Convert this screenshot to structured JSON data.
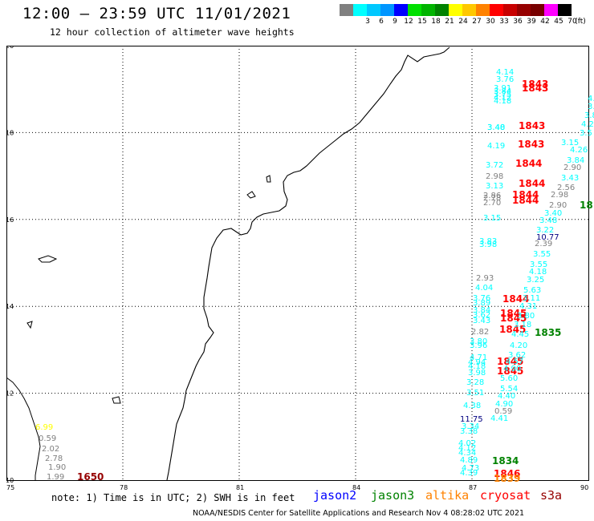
{
  "title": "12:00 — 23:59 UTC 11/01/2021",
  "subtitle": "12 hour collection of altimeter wave heights",
  "legend": {
    "unit": "(ft)",
    "swatches": [
      {
        "label": "",
        "color": "#808080"
      },
      {
        "label": "3",
        "color": "#00ffff"
      },
      {
        "label": "6",
        "color": "#00c8ff"
      },
      {
        "label": "9",
        "color": "#0096ff"
      },
      {
        "label": "12",
        "color": "#0000ff"
      },
      {
        "label": "15",
        "color": "#00e000"
      },
      {
        "label": "18",
        "color": "#00b400"
      },
      {
        "label": "21",
        "color": "#008200"
      },
      {
        "label": "24",
        "color": "#ffff00"
      },
      {
        "label": "27",
        "color": "#ffc800"
      },
      {
        "label": "30",
        "color": "#ff8200"
      },
      {
        "label": "33",
        "color": "#ff0000"
      },
      {
        "label": "36",
        "color": "#c80000"
      },
      {
        "label": "39",
        "color": "#960000"
      },
      {
        "label": "42",
        "color": "#780000"
      },
      {
        "label": "45",
        "color": "#ff00ff"
      },
      {
        "label": "70",
        "color": "#000000"
      }
    ]
  },
  "lat_labels": [
    "20",
    "18",
    "16",
    "14",
    "12",
    "10"
  ],
  "lon_labels": [
    "75",
    "78",
    "81",
    "84",
    "87",
    "90"
  ],
  "wave_labels": [
    {
      "t": "4.14",
      "c": "#00ffff"
    },
    {
      "t": "3.76",
      "c": "#00ffff"
    },
    {
      "t": "3.91",
      "c": "#00ffff"
    },
    {
      "t": "3.84",
      "c": "#00ffff"
    },
    {
      "t": "3.75",
      "c": "#00ffff"
    },
    {
      "t": "4.18",
      "c": "#00ffff"
    },
    {
      "t": "4.12",
      "c": "#00ffff"
    },
    {
      "t": "1843",
      "c": "#ff0000"
    },
    {
      "t": "1843",
      "c": "#ff0000"
    },
    {
      "t": "3.48",
      "c": "#00ffff"
    },
    {
      "t": "3.40",
      "c": "#00ffff"
    },
    {
      "t": "1843",
      "c": "#ff0000"
    },
    {
      "t": "4.19",
      "c": "#00ffff"
    },
    {
      "t": "1843",
      "c": "#ff0000"
    },
    {
      "t": "3.72",
      "c": "#00ffff"
    },
    {
      "t": "1844",
      "c": "#ff0000"
    },
    {
      "t": "2.98",
      "c": "#808080"
    },
    {
      "t": "3.13",
      "c": "#00ffff"
    },
    {
      "t": "1844",
      "c": "#ff0000"
    },
    {
      "t": "2.86",
      "c": "#808080"
    },
    {
      "t": "2.78",
      "c": "#808080"
    },
    {
      "t": "1844",
      "c": "#ff0000"
    },
    {
      "t": "2.70",
      "c": "#808080"
    },
    {
      "t": "1844",
      "c": "#ff0000"
    },
    {
      "t": "3.15",
      "c": "#00ffff"
    },
    {
      "t": "3.83",
      "c": "#00ffff"
    },
    {
      "t": "3.98",
      "c": "#00ffff"
    },
    {
      "t": "2.93",
      "c": "#808080"
    },
    {
      "t": "4.04",
      "c": "#00ffff"
    },
    {
      "t": "3.76",
      "c": "#00ffff"
    },
    {
      "t": "3.89",
      "c": "#00ffff"
    },
    {
      "t": "1844",
      "c": "#ff0000"
    },
    {
      "t": "3.84",
      "c": "#00ffff"
    },
    {
      "t": "3.62",
      "c": "#00ffff"
    },
    {
      "t": "3.43",
      "c": "#00ffff"
    },
    {
      "t": "1845",
      "c": "#ff0000"
    },
    {
      "t": "1845",
      "c": "#ff0000"
    },
    {
      "t": "2.82",
      "c": "#808080"
    },
    {
      "t": "1845",
      "c": "#ff0000"
    },
    {
      "t": "3.80",
      "c": "#00ffff"
    },
    {
      "t": "3.96",
      "c": "#00ffff"
    },
    {
      "t": "4.71",
      "c": "#00ffff"
    },
    {
      "t": "4.94",
      "c": "#00ffff"
    },
    {
      "t": "1845",
      "c": "#ff0000"
    },
    {
      "t": "4.18",
      "c": "#00ffff"
    },
    {
      "t": "3.98",
      "c": "#00ffff"
    },
    {
      "t": "1845",
      "c": "#ff0000"
    },
    {
      "t": "3.28",
      "c": "#00ffff"
    },
    {
      "t": "3.51",
      "c": "#00ffff"
    },
    {
      "t": "4.38",
      "c": "#00ffff"
    },
    {
      "t": "11.75",
      "c": "#000080"
    },
    {
      "t": "3.34",
      "c": "#00ffff"
    },
    {
      "t": "3.38",
      "c": "#00ffff"
    },
    {
      "t": "4.02",
      "c": "#00ffff"
    },
    {
      "t": "4.12",
      "c": "#00ffff"
    },
    {
      "t": "4.34",
      "c": "#00ffff"
    },
    {
      "t": "4.89",
      "c": "#00ffff"
    },
    {
      "t": "4.73",
      "c": "#00ffff"
    },
    {
      "t": "4.39",
      "c": "#00ffff"
    },
    {
      "t": "3.15",
      "c": "#00ffff"
    },
    {
      "t": "4.26",
      "c": "#00ffff"
    },
    {
      "t": "3.84",
      "c": "#00ffff"
    },
    {
      "t": "2.90",
      "c": "#808080"
    },
    {
      "t": "3.43",
      "c": "#00ffff"
    },
    {
      "t": "2.56",
      "c": "#808080"
    },
    {
      "t": "2.98",
      "c": "#808080"
    },
    {
      "t": "2.90",
      "c": "#808080"
    },
    {
      "t": "3.40",
      "c": "#00ffff"
    },
    {
      "t": "3.48",
      "c": "#00ffff"
    },
    {
      "t": "3.22",
      "c": "#00ffff"
    },
    {
      "t": "10.77",
      "c": "#000080"
    },
    {
      "t": "2.39",
      "c": "#808080"
    },
    {
      "t": "3.55",
      "c": "#00ffff"
    },
    {
      "t": "3.55",
      "c": "#00ffff"
    },
    {
      "t": "4.18",
      "c": "#00ffff"
    },
    {
      "t": "3.25",
      "c": "#00ffff"
    },
    {
      "t": "5.63",
      "c": "#00ffff"
    },
    {
      "t": "3.11",
      "c": "#00ffff"
    },
    {
      "t": "4.31",
      "c": "#00ffff"
    },
    {
      "t": "3.80",
      "c": "#00ffff"
    },
    {
      "t": "3.18",
      "c": "#00ffff"
    },
    {
      "t": "4.45",
      "c": "#00ffff"
    },
    {
      "t": "4.20",
      "c": "#00ffff"
    },
    {
      "t": "3.62",
      "c": "#00ffff"
    },
    {
      "t": "4.57",
      "c": "#00ffff"
    },
    {
      "t": "4.90",
      "c": "#00ffff"
    },
    {
      "t": "5.60",
      "c": "#00ffff"
    },
    {
      "t": "5.54",
      "c": "#00ffff"
    },
    {
      "t": "4.40",
      "c": "#00ffff"
    },
    {
      "t": "4.90",
      "c": "#00ffff"
    },
    {
      "t": "0.59",
      "c": "#808080"
    },
    {
      "t": "4.41",
      "c": "#00ffff"
    },
    {
      "t": "1835",
      "c": "#008200"
    },
    {
      "t": "1834",
      "c": "#008200"
    },
    {
      "t": "1846",
      "c": "#ff0000"
    },
    {
      "t": "1839",
      "c": "#ff8200"
    },
    {
      "t": "18",
      "c": "#008200"
    },
    {
      "t": "4.",
      "c": "#00ffff"
    },
    {
      "t": "3.",
      "c": "#00ffff"
    },
    {
      "t": "3.8",
      "c": "#00ffff"
    },
    {
      "t": "4.2",
      "c": "#00ffff"
    },
    {
      "t": "3.5",
      "c": "#00ffff"
    },
    {
      "t": "6.99",
      "c": "#ffff00"
    },
    {
      "t": "0.59",
      "c": "#808080"
    },
    {
      "t": "2.02",
      "c": "#808080"
    },
    {
      "t": "2.78",
      "c": "#808080"
    },
    {
      "t": "1.90",
      "c": "#808080"
    },
    {
      "t": "1.99",
      "c": "#808080"
    },
    {
      "t": "1650",
      "c": "#960000"
    }
  ],
  "footer": {
    "note": "note: 1) Time is in UTC; 2) SWH is in feet",
    "satellites": [
      {
        "name": "jason2",
        "color": "#0000ff"
      },
      {
        "name": "jason3",
        "color": "#008200"
      },
      {
        "name": "altika",
        "color": "#ff8200"
      },
      {
        "name": "cryosat",
        "color": "#ff0000"
      },
      {
        "name": "s3a",
        "color": "#960000"
      }
    ],
    "credit": "NOAA/NESDIS Center for Satellite Applications and Research    Nov  4 08:28:02 UTC 2021"
  }
}
